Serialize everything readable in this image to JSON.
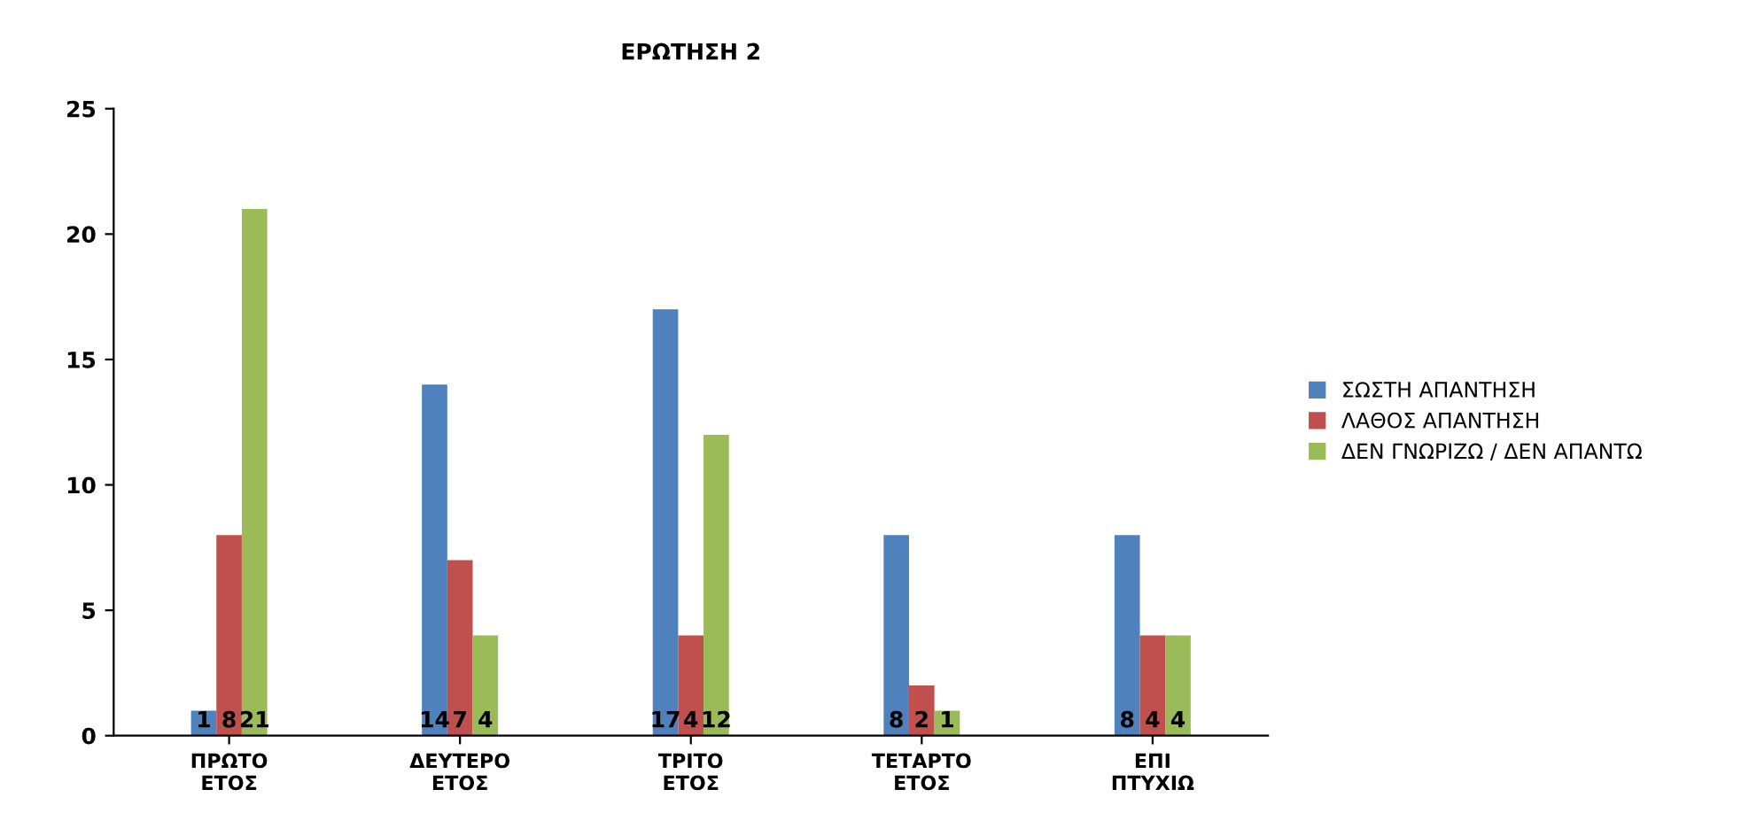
{
  "chart_data": {
    "type": "bar",
    "title": "ΕΡΩΤΗΣΗ 2",
    "categories": [
      "ΠΡΩΤΟ\nΕΤΟΣ",
      "ΔΕΥΤΕΡΟ\nΕΤΟΣ",
      "ΤΡΙΤΟ\nΕΤΟΣ",
      "ΤΕΤΑΡΤΟ\nΕΤΟΣ",
      "ΕΠΙ\nΠΤΥΧΙΩ"
    ],
    "series": [
      {
        "name": "ΣΩΣΤΗ ΑΠΑΝΤΗΣΗ",
        "color": "#4f81bd",
        "values": [
          1,
          14,
          17,
          8,
          8
        ]
      },
      {
        "name": "ΛΑΘΟΣ ΑΠΑΝΤΗΣΗ",
        "color": "#c0504d",
        "values": [
          8,
          7,
          4,
          2,
          4
        ]
      },
      {
        "name": "ΔΕΝ ΓΝΩΡΙΖΩ / ΔΕΝ ΑΠΑΝΤΩ",
        "color": "#9bbb59",
        "values": [
          21,
          4,
          12,
          1,
          4
        ]
      }
    ],
    "ylim": [
      0,
      25
    ],
    "yticks": [
      0,
      5,
      10,
      15,
      20,
      25
    ],
    "grid": false,
    "legend": "right",
    "data_labels": true
  }
}
